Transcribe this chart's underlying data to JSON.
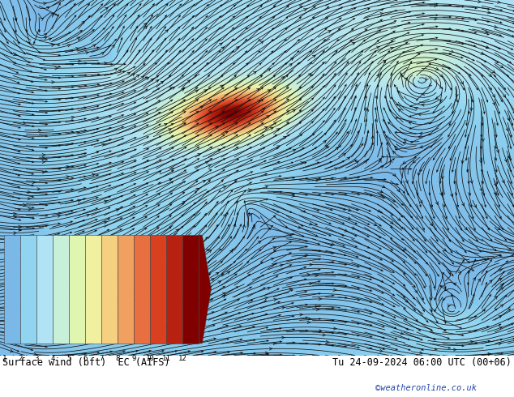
{
  "title_left": "Surface wind (bft)  EC (AIFS)",
  "title_right": "Tu 24-09-2024 06:00 UTC (00+06)",
  "watermark": "©weatheronline.co.uk",
  "colorbar_levels": [
    1,
    2,
    3,
    4,
    5,
    6,
    7,
    8,
    9,
    10,
    11,
    12
  ],
  "colorbar_colors": [
    "#7ab8e8",
    "#90d4f0",
    "#b0e4f4",
    "#c8f0d8",
    "#e0f5b0",
    "#f0f0a0",
    "#f5d080",
    "#f0a060",
    "#e87040",
    "#d84020",
    "#b82010",
    "#800000"
  ],
  "bg_color": "#ffffff",
  "map_bg": "#ffffff",
  "arrow_color": "#111111",
  "streamline_color": "#111111",
  "fig_width": 6.34,
  "fig_height": 4.9,
  "dpi": 100
}
